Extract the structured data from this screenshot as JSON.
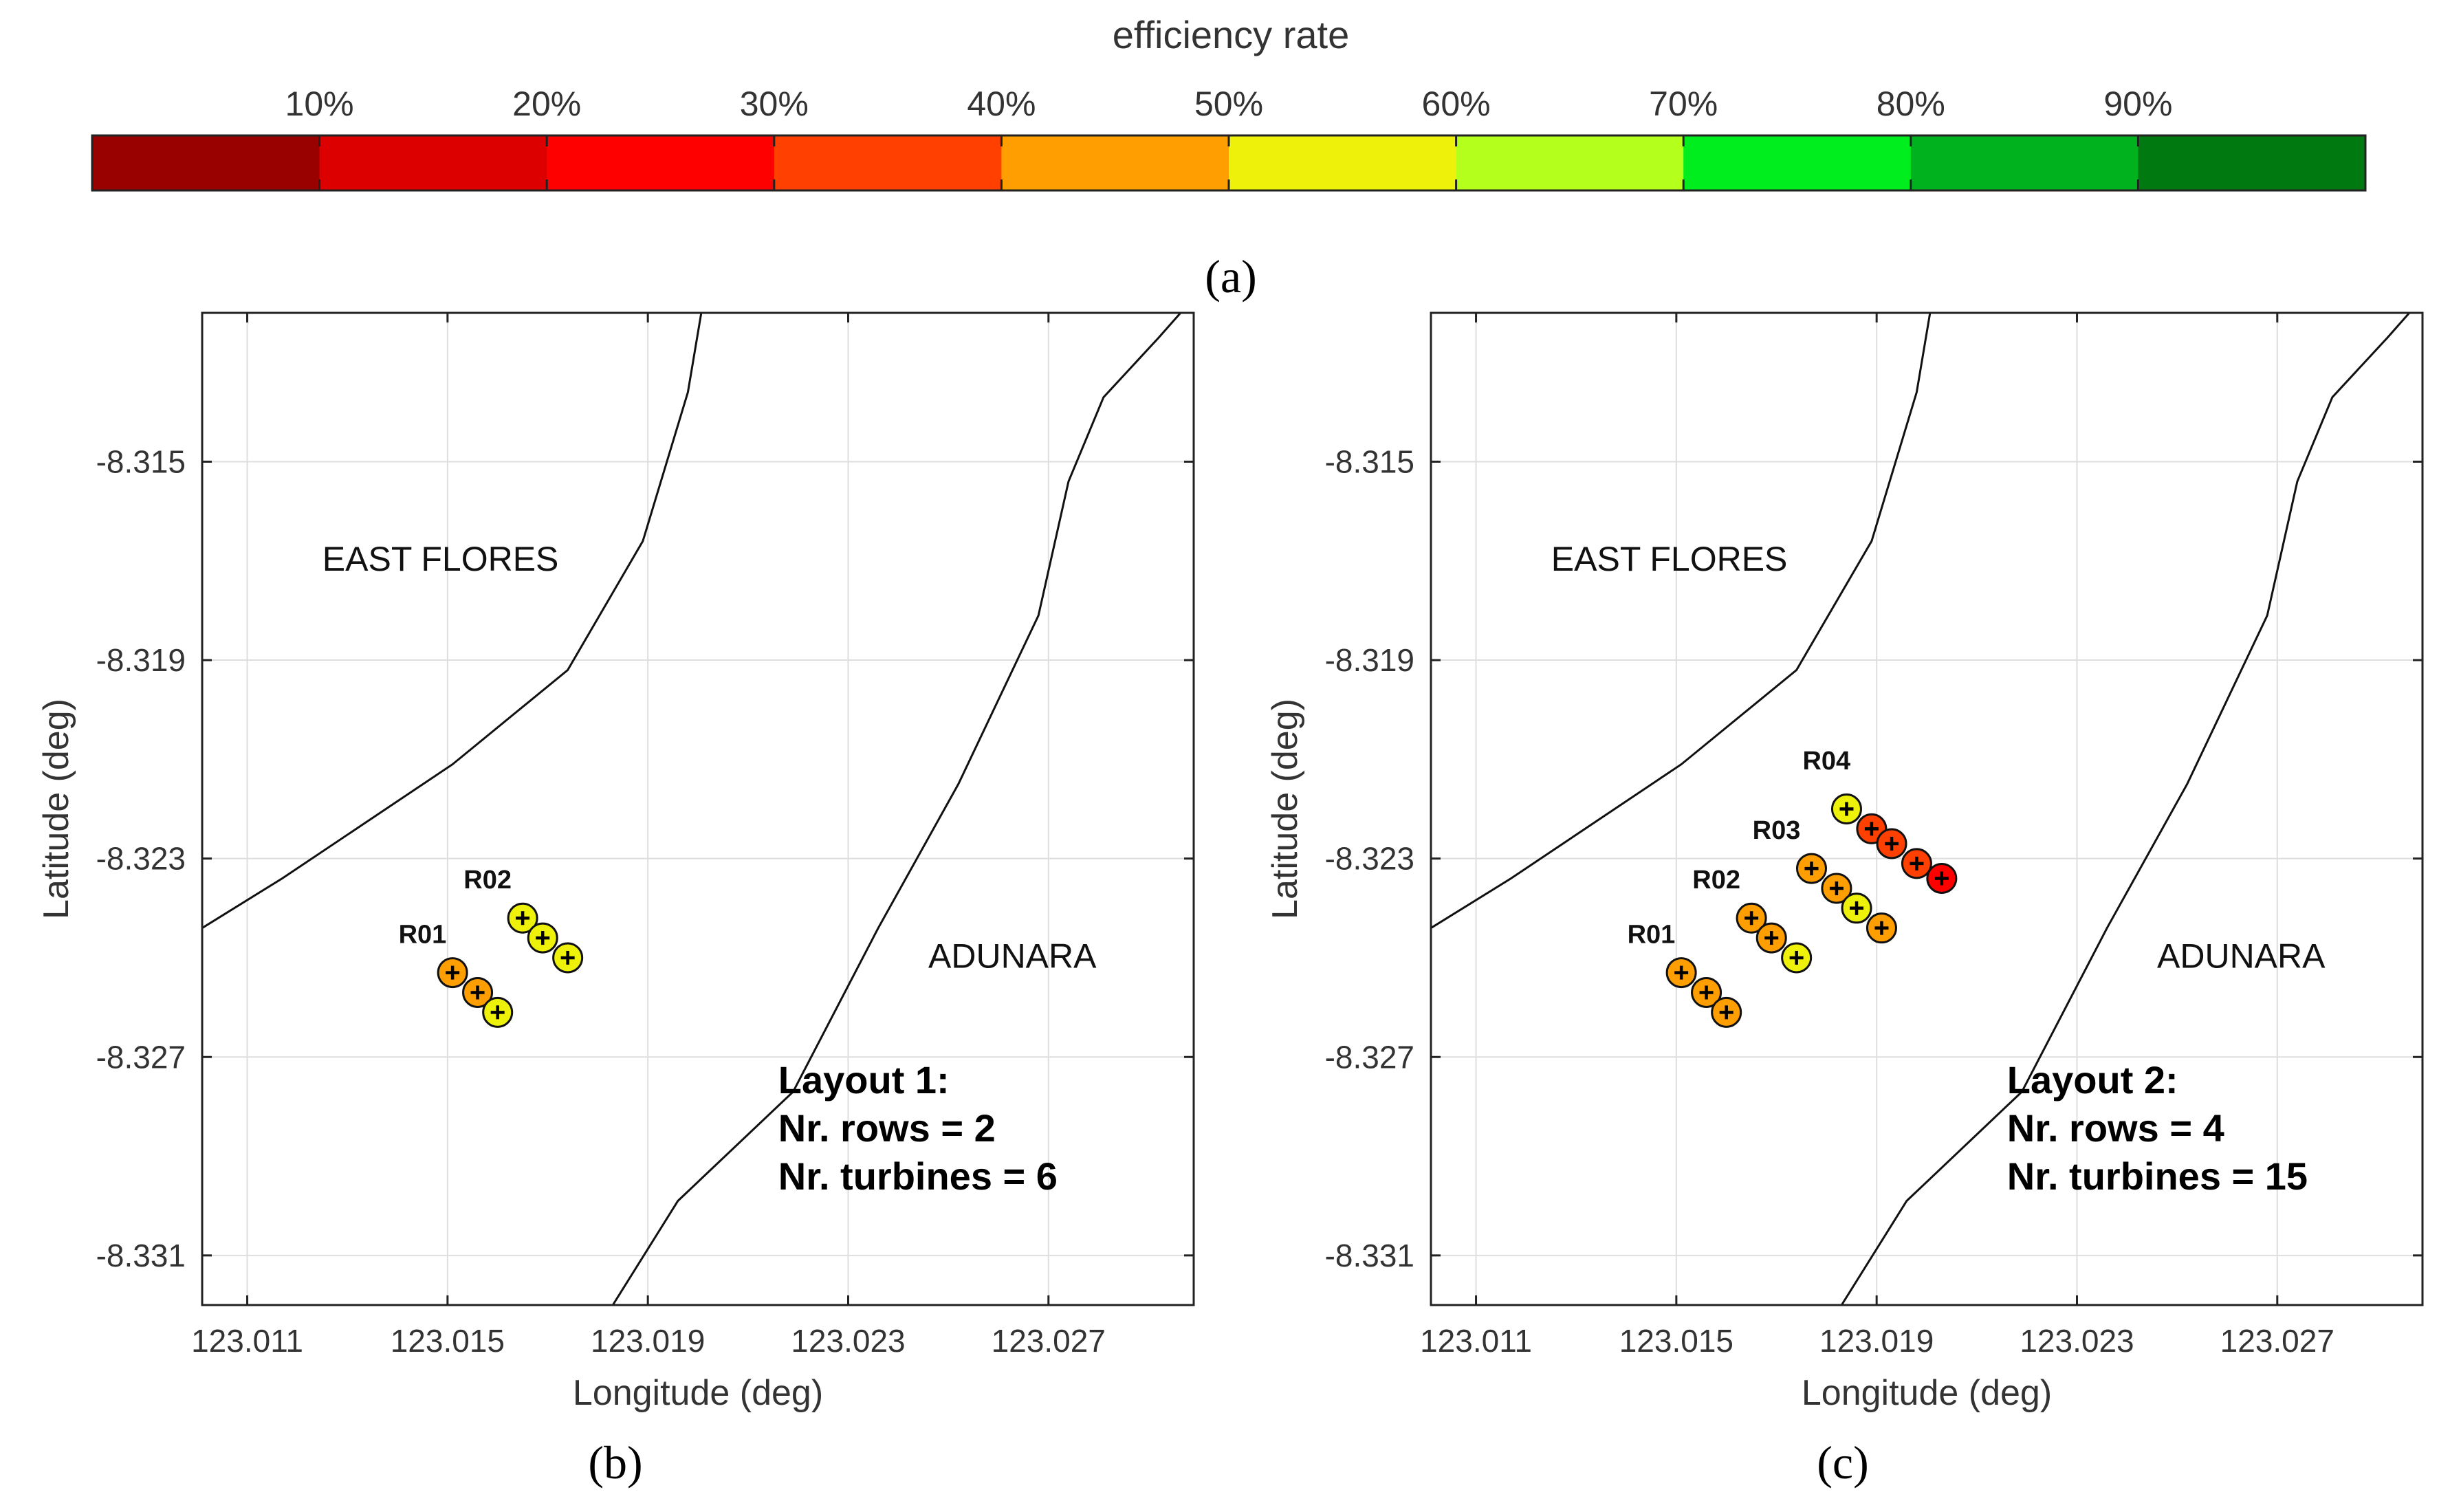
{
  "colorbar": {
    "title": "efficiency rate",
    "tick_labels": [
      "10%",
      "20%",
      "30%",
      "40%",
      "50%",
      "60%",
      "70%",
      "80%",
      "90%"
    ],
    "colors": [
      "#990000",
      "#dd0000",
      "#ff0000",
      "#ff4000",
      "#ff9e00",
      "#eef20a",
      "#b5ff1d",
      "#00ee1d",
      "#00b21d",
      "#007a10"
    ],
    "range": [
      0,
      100
    ]
  },
  "panel_labels": {
    "a": "(a)",
    "b": "(b)",
    "c": "(c)"
  },
  "chart_data": [
    {
      "type": "scatter",
      "id": "b",
      "xlabel": "Longitude (deg)",
      "ylabel": "Latitude (deg)",
      "xlim": [
        123.0101,
        123.0299
      ],
      "ylim": [
        -8.332,
        -8.312
      ],
      "xticks": [
        123.011,
        123.015,
        123.019,
        123.023,
        123.027
      ],
      "xtick_labels": [
        "123.011",
        "123.015",
        "123.019",
        "123.023",
        "123.027"
      ],
      "yticks": [
        -8.315,
        -8.319,
        -8.323,
        -8.327,
        -8.331
      ],
      "ytick_labels": [
        "-8.315",
        "-8.319",
        "-8.323",
        "-8.327",
        "-8.331"
      ],
      "grid": true,
      "region_labels": [
        {
          "text": "EAST FLORES",
          "x": 123.0125,
          "y": -8.3172
        },
        {
          "text": "ADUNARA",
          "x": 123.0246,
          "y": -8.3252
        }
      ],
      "coastlines": [
        [
          [
            123.0101,
            -8.3244
          ],
          [
            123.0117,
            -8.3234
          ],
          [
            123.0151,
            -8.3211
          ],
          [
            123.0174,
            -8.3192
          ],
          [
            123.0189,
            -8.3166
          ],
          [
            123.0198,
            -8.3136
          ],
          [
            123.0201,
            -8.3118
          ]
        ],
        [
          [
            123.0183,
            -8.332
          ],
          [
            123.0196,
            -8.3299
          ],
          [
            123.0219,
            -8.3277
          ],
          [
            123.0236,
            -8.3244
          ],
          [
            123.0252,
            -8.3215
          ],
          [
            123.0268,
            -8.3181
          ],
          [
            123.0274,
            -8.3154
          ],
          [
            123.0281,
            -8.3137
          ],
          [
            123.0292,
            -8.3125
          ],
          [
            123.0299,
            -8.3117
          ]
        ]
      ],
      "layout_text": {
        "title": "Layout 1:",
        "rows": "Nr. rows = 2",
        "turbines": "Nr. turbines = 6"
      },
      "rows": [
        {
          "label": "R01",
          "label_x": 123.0145,
          "label_y": -8.3247,
          "turbines": [
            {
              "x": 123.0151,
              "y": -8.3253,
              "eff": 45
            },
            {
              "x": 123.0156,
              "y": -8.3257,
              "eff": 45
            },
            {
              "x": 123.016,
              "y": -8.3261,
              "eff": 55
            }
          ]
        },
        {
          "label": "R02",
          "label_x": 123.0158,
          "label_y": -8.3236,
          "turbines": [
            {
              "x": 123.0165,
              "y": -8.3242,
              "eff": 55
            },
            {
              "x": 123.0169,
              "y": -8.3246,
              "eff": 55
            },
            {
              "x": 123.0174,
              "y": -8.325,
              "eff": 55
            }
          ]
        }
      ]
    },
    {
      "type": "scatter",
      "id": "c",
      "xlabel": "Longitude (deg)",
      "ylabel": "Latitude (deg)",
      "xlim": [
        123.0101,
        123.0299
      ],
      "ylim": [
        -8.332,
        -8.312
      ],
      "xticks": [
        123.011,
        123.015,
        123.019,
        123.023,
        123.027
      ],
      "xtick_labels": [
        "123.011",
        "123.015",
        "123.019",
        "123.023",
        "123.027"
      ],
      "yticks": [
        -8.315,
        -8.319,
        -8.323,
        -8.327,
        -8.331
      ],
      "ytick_labels": [
        "-8.315",
        "-8.319",
        "-8.323",
        "-8.327",
        "-8.331"
      ],
      "grid": true,
      "region_labels": [
        {
          "text": "EAST FLORES",
          "x": 123.0125,
          "y": -8.3172
        },
        {
          "text": "ADUNARA",
          "x": 123.0246,
          "y": -8.3252
        }
      ],
      "coastlines": [
        [
          [
            123.0101,
            -8.3244
          ],
          [
            123.0117,
            -8.3234
          ],
          [
            123.0151,
            -8.3211
          ],
          [
            123.0174,
            -8.3192
          ],
          [
            123.0189,
            -8.3166
          ],
          [
            123.0198,
            -8.3136
          ],
          [
            123.0201,
            -8.3118
          ]
        ],
        [
          [
            123.0183,
            -8.332
          ],
          [
            123.0196,
            -8.3299
          ],
          [
            123.0219,
            -8.3277
          ],
          [
            123.0236,
            -8.3244
          ],
          [
            123.0252,
            -8.3215
          ],
          [
            123.0268,
            -8.3181
          ],
          [
            123.0274,
            -8.3154
          ],
          [
            123.0281,
            -8.3137
          ],
          [
            123.0292,
            -8.3125
          ],
          [
            123.0299,
            -8.3117
          ]
        ]
      ],
      "layout_text": {
        "title": "Layout 2:",
        "rows": "Nr. rows = 4",
        "turbines": "Nr. turbines = 15"
      },
      "rows": [
        {
          "label": "R01",
          "label_x": 123.0145,
          "label_y": -8.3247,
          "turbines": [
            {
              "x": 123.0151,
              "y": -8.3253,
              "eff": 45
            },
            {
              "x": 123.0156,
              "y": -8.3257,
              "eff": 45
            },
            {
              "x": 123.016,
              "y": -8.3261,
              "eff": 45
            }
          ]
        },
        {
          "label": "R02",
          "label_x": 123.0158,
          "label_y": -8.3236,
          "turbines": [
            {
              "x": 123.0165,
              "y": -8.3242,
              "eff": 45
            },
            {
              "x": 123.0169,
              "y": -8.3246,
              "eff": 45
            },
            {
              "x": 123.0174,
              "y": -8.325,
              "eff": 55
            }
          ]
        },
        {
          "label": "R03",
          "label_x": 123.017,
          "label_y": -8.3226,
          "turbines": [
            {
              "x": 123.0177,
              "y": -8.3232,
              "eff": 45
            },
            {
              "x": 123.0182,
              "y": -8.3236,
              "eff": 45
            },
            {
              "x": 123.0186,
              "y": -8.324,
              "eff": 55
            },
            {
              "x": 123.0191,
              "y": -8.3244,
              "eff": 45
            }
          ]
        },
        {
          "label": "R04",
          "label_x": 123.018,
          "label_y": -8.3212,
          "turbines": [
            {
              "x": 123.0184,
              "y": -8.322,
              "eff": 55
            },
            {
              "x": 123.0189,
              "y": -8.3224,
              "eff": 35
            },
            {
              "x": 123.0193,
              "y": -8.3227,
              "eff": 35
            },
            {
              "x": 123.0198,
              "y": -8.3231,
              "eff": 35
            },
            {
              "x": 123.0203,
              "y": -8.3234,
              "eff": 25
            }
          ]
        }
      ]
    }
  ]
}
